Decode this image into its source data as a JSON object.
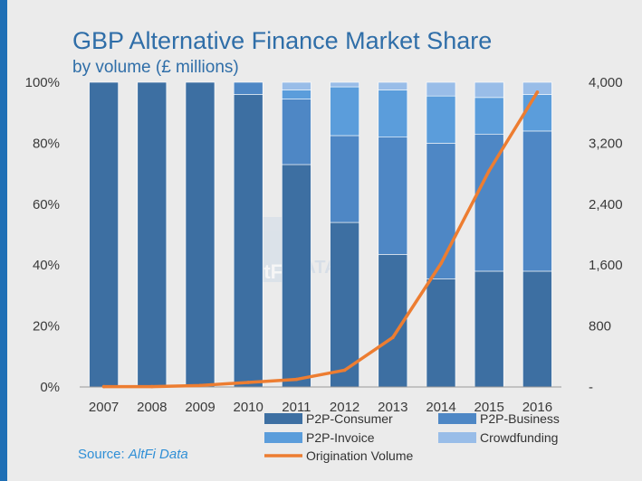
{
  "header": {
    "title": "GBP Alternative Finance Market Share",
    "subtitle": "by volume (£ millions)"
  },
  "source": {
    "label": "Source:",
    "name": "AltFi Data"
  },
  "watermark": {
    "logo": "altFi",
    "text": "DATA"
  },
  "colors": {
    "background": "#ebebeb",
    "accent_strip": "#1f6fb5",
    "title": "#2f6ea8",
    "consumer": "#3d6fa2",
    "business": "#4e87c5",
    "invoice": "#5b9ddb",
    "crowdfunding": "#99bde8",
    "line": "#ed7d31"
  },
  "chart_data": {
    "type": "bar",
    "stacked": true,
    "title": "GBP Alternative Finance Market Share",
    "subtitle": "by volume (£ millions)",
    "categories": [
      "2007",
      "2008",
      "2009",
      "2010",
      "2011",
      "2012",
      "2013",
      "2014",
      "2015",
      "2016"
    ],
    "ylim": [
      0,
      100
    ],
    "y_ticks": [
      "0%",
      "20%",
      "40%",
      "60%",
      "80%",
      "100%"
    ],
    "y2lim": [
      0,
      4000
    ],
    "y2_ticks": [
      "-",
      "800",
      "1,600",
      "2,400",
      "3,200",
      "4,000"
    ],
    "series": [
      {
        "name": "P2P-Consumer",
        "type": "bar",
        "axis": "left",
        "values": [
          100,
          100,
          100,
          96,
          73,
          54,
          43.5,
          35.5,
          38,
          38
        ]
      },
      {
        "name": "P2P-Business",
        "type": "bar",
        "axis": "left",
        "values": [
          0,
          0,
          0,
          4,
          21.5,
          28.5,
          38.5,
          44.5,
          45,
          46
        ]
      },
      {
        "name": "P2P-Invoice",
        "type": "bar",
        "axis": "left",
        "values": [
          0,
          0,
          0,
          0,
          3,
          16,
          15.5,
          15.5,
          12,
          12
        ]
      },
      {
        "name": "Crowdfunding",
        "type": "bar",
        "axis": "right",
        "values": [
          0,
          0,
          0,
          0,
          2.5,
          1.5,
          2.5,
          4.5,
          5,
          4
        ]
      },
      {
        "name": "Origination Volume",
        "type": "line",
        "axis": "right",
        "values": [
          5,
          5,
          20,
          60,
          100,
          220,
          650,
          1620,
          2840,
          3870
        ]
      }
    ],
    "legend": [
      "P2P-Consumer",
      "P2P-Business",
      "P2P-Invoice",
      "Crowdfunding",
      "Origination Volume"
    ],
    "legend_position": "bottom",
    "grid": false
  }
}
